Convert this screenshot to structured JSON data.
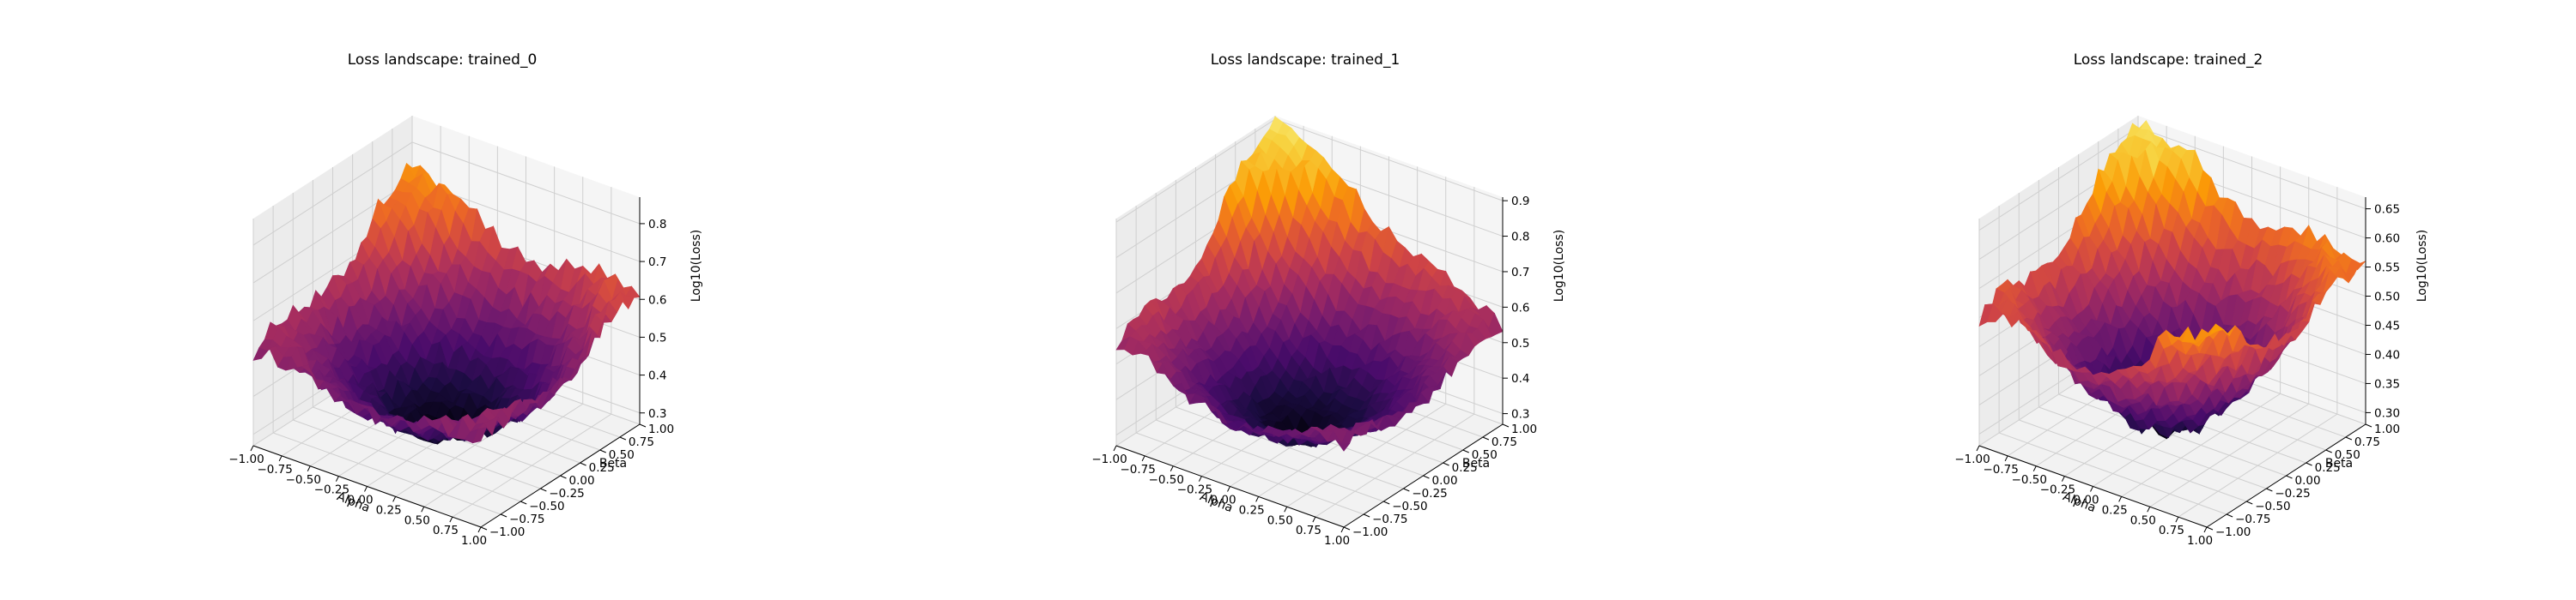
{
  "figure": {
    "background": "#ffffff",
    "pane_color": "#f2f2f2",
    "grid_color": "#cfcfcf",
    "colormap": "inferno",
    "colormap_stops": [
      "#000004",
      "#1b0c41",
      "#4a0c6b",
      "#781c6d",
      "#a52c60",
      "#cf4446",
      "#ed6925",
      "#fb9b06",
      "#f7d13d",
      "#fcffa4"
    ]
  },
  "chart_data": [
    {
      "type": "surface",
      "title": "Loss landscape: trained_0",
      "xlabel": "Alpha",
      "ylabel": "Beta",
      "zlabel": "Log10(Loss)",
      "xlim": [
        -1.0,
        1.0
      ],
      "ylim": [
        -1.0,
        1.0
      ],
      "zlim": [
        0.27,
        0.87
      ],
      "xticks": [
        "−1.00",
        "−0.75",
        "−0.50",
        "−0.25",
        "0.00",
        "0.25",
        "0.50",
        "0.75",
        "1.00"
      ],
      "yticks": [
        "−1.00",
        "−0.75",
        "−0.50",
        "−0.25",
        "0.00",
        "0.25",
        "0.50",
        "0.75",
        "1.00"
      ],
      "zticks": [
        "0.3",
        "0.4",
        "0.5",
        "0.6",
        "0.7",
        "0.8"
      ],
      "grid": true,
      "surface": {
        "min_value": 0.28,
        "min_at": [
          0.0,
          0.0
        ],
        "corners": {
          "x-1_y-1": 0.52,
          "x1_y-1": 0.5,
          "x-1_y1": 0.74,
          "x1_y1": 0.62
        },
        "roughness": 0.05
      }
    },
    {
      "type": "surface",
      "title": "Loss landscape: trained_1",
      "xlabel": "Alpha",
      "ylabel": "Beta",
      "zlabel": "Log10(Loss)",
      "xlim": [
        -1.0,
        1.0
      ],
      "ylim": [
        -1.0,
        1.0
      ],
      "zlim": [
        0.27,
        0.91
      ],
      "xticks": [
        "−1.00",
        "−0.75",
        "−0.50",
        "−0.25",
        "0.00",
        "0.25",
        "0.50",
        "0.75",
        "1.00"
      ],
      "yticks": [
        "−1.00",
        "−0.75",
        "−0.50",
        "−0.25",
        "0.00",
        "0.25",
        "0.50",
        "0.75",
        "1.00"
      ],
      "zticks": [
        "0.3",
        "0.4",
        "0.5",
        "0.6",
        "0.7",
        "0.8",
        "0.9"
      ],
      "grid": true,
      "surface": {
        "min_value": 0.29,
        "min_at": [
          0.0,
          -0.1
        ],
        "corners": {
          "x-1_y-1": 0.56,
          "x1_y-1": 0.5,
          "x-1_y1": 0.9,
          "x1_y1": 0.55
        },
        "roughness": 0.04
      }
    },
    {
      "type": "surface",
      "title": "Loss landscape: trained_2",
      "xlabel": "Alpha",
      "ylabel": "Beta",
      "zlabel": "Log10(Loss)",
      "xlim": [
        -1.0,
        1.0
      ],
      "ylim": [
        -1.0,
        1.0
      ],
      "zlim": [
        0.28,
        0.67
      ],
      "xticks": [
        "−1.00",
        "−0.75",
        "−0.50",
        "−0.25",
        "0.00",
        "0.25",
        "0.50",
        "0.75",
        "1.00"
      ],
      "yticks": [
        "−1.00",
        "−0.75",
        "−0.50",
        "−0.25",
        "0.00",
        "0.25",
        "0.50",
        "0.75",
        "1.00"
      ],
      "zticks": [
        "0.30",
        "0.35",
        "0.40",
        "0.45",
        "0.50",
        "0.55",
        "0.60",
        "0.65"
      ],
      "grid": true,
      "surface": {
        "min_value": 0.29,
        "min_at": [
          0.0,
          -0.05
        ],
        "corners": {
          "x-1_y-1": 0.5,
          "x1_y-1": 0.6,
          "x-1_y1": 0.66,
          "x1_y1": 0.55
        },
        "roughness": 0.03
      }
    }
  ]
}
